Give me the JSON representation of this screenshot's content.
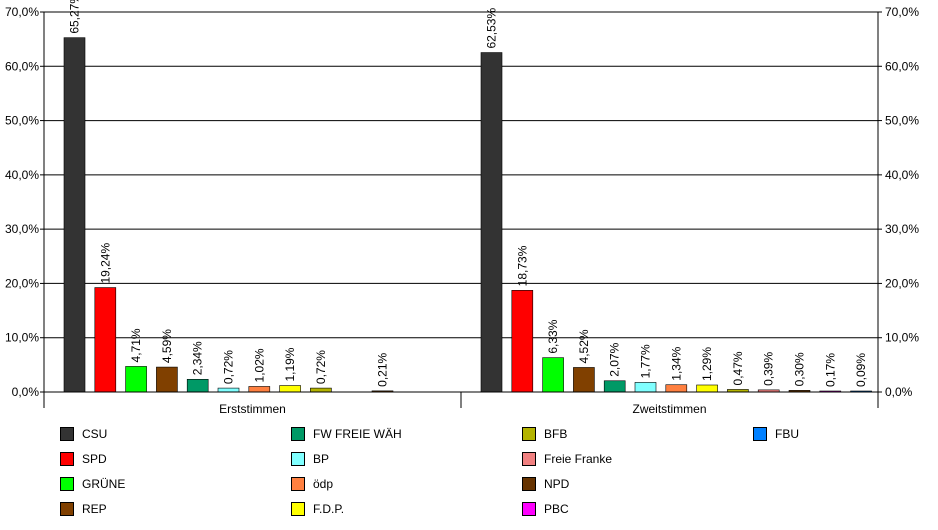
{
  "chart_data": {
    "type": "bar",
    "categories": [
      "Erststimmen",
      "Zweitstimmen"
    ],
    "ylim": [
      0,
      70
    ],
    "yticks": [
      "0,0%",
      "10,0%",
      "20,0%",
      "30,0%",
      "40,0%",
      "50,0%",
      "60,0%",
      "70,0%"
    ],
    "grid": true,
    "legend_position": "bottom",
    "groups": [
      {
        "category": "Erststimmen",
        "bars": [
          {
            "party": "CSU",
            "value": 65.27,
            "label": "65,27%"
          },
          {
            "party": "SPD",
            "value": 19.24,
            "label": "19,24%"
          },
          {
            "party": "GRÜNE",
            "value": 4.71,
            "label": "4,71%"
          },
          {
            "party": "REP",
            "value": 4.59,
            "label": "4,59%"
          },
          {
            "party": "FW FREIE WÄH",
            "value": 2.34,
            "label": "2,34%"
          },
          {
            "party": "BP",
            "value": 0.72,
            "label": "0,72%"
          },
          {
            "party": "ödp",
            "value": 1.02,
            "label": "1,02%"
          },
          {
            "party": "F.D.P.",
            "value": 1.19,
            "label": "1,19%"
          },
          {
            "party": "BFB",
            "value": 0.72,
            "label": "0,72%"
          },
          {
            "party": "Freie Franke",
            "value": null,
            "label": ""
          },
          {
            "party": "NPD",
            "value": 0.21,
            "label": "0,21%"
          },
          {
            "party": "PBC",
            "value": null,
            "label": ""
          },
          {
            "party": "FBU",
            "value": null,
            "label": ""
          }
        ]
      },
      {
        "category": "Zweitstimmen",
        "bars": [
          {
            "party": "CSU",
            "value": 62.53,
            "label": "62,53%"
          },
          {
            "party": "SPD",
            "value": 18.73,
            "label": "18,73%"
          },
          {
            "party": "GRÜNE",
            "value": 6.33,
            "label": "6,33%"
          },
          {
            "party": "REP",
            "value": 4.52,
            "label": "4,52%"
          },
          {
            "party": "FW FREIE WÄH",
            "value": 2.07,
            "label": "2,07%"
          },
          {
            "party": "BP",
            "value": 1.77,
            "label": "1,77%"
          },
          {
            "party": "ödp",
            "value": 1.34,
            "label": "1,34%"
          },
          {
            "party": "F.D.P.",
            "value": 1.29,
            "label": "1,29%"
          },
          {
            "party": "BFB",
            "value": 0.47,
            "label": "0,47%"
          },
          {
            "party": "Freie Franke",
            "value": 0.39,
            "label": "0,39%"
          },
          {
            "party": "NPD",
            "value": 0.3,
            "label": "0,30%"
          },
          {
            "party": "PBC",
            "value": 0.17,
            "label": "0,17%"
          },
          {
            "party": "FBU",
            "value": 0.09,
            "label": "0,09%"
          }
        ]
      }
    ],
    "series": [
      {
        "name": "CSU",
        "color": "#333333"
      },
      {
        "name": "SPD",
        "color": "#ff0000"
      },
      {
        "name": "GRÜNE",
        "color": "#00ff00"
      },
      {
        "name": "REP",
        "color": "#804000"
      },
      {
        "name": "FW FREIE WÄH",
        "color": "#009966"
      },
      {
        "name": "BP",
        "color": "#80ffff"
      },
      {
        "name": "ödp",
        "color": "#ff8040"
      },
      {
        "name": "F.D.P.",
        "color": "#ffff00"
      },
      {
        "name": "BFB",
        "color": "#b3b300"
      },
      {
        "name": "Freie Franke",
        "color": "#f08080"
      },
      {
        "name": "NPD",
        "color": "#663300"
      },
      {
        "name": "PBC",
        "color": "#ff00ff"
      },
      {
        "name": "FBU",
        "color": "#0080ff"
      }
    ],
    "legend_columns": [
      [
        "CSU",
        "SPD",
        "GRÜNE",
        "REP"
      ],
      [
        "FW FREIE WÄH",
        "BP",
        "ödp",
        "F.D.P."
      ],
      [
        "BFB",
        "Freie Franke",
        "NPD",
        "PBC"
      ],
      [
        "FBU"
      ]
    ]
  }
}
